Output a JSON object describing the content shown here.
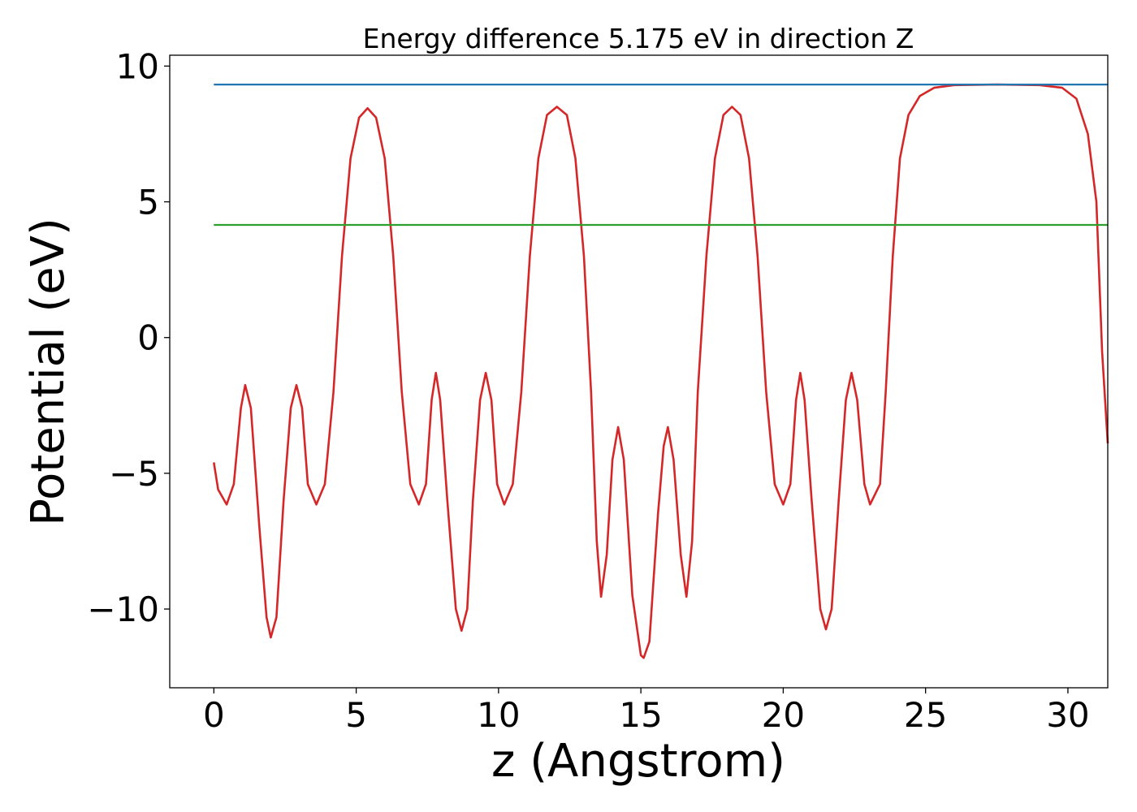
{
  "chart_data": {
    "type": "line",
    "title": "Energy difference 5.175 eV in direction Z",
    "xlabel": "z (Angstrom)",
    "ylabel": "Potential (eV)",
    "xlim": [
      -1.55,
      31.4
    ],
    "ylim": [
      -12.9,
      10.4
    ],
    "xticks": [
      0,
      5,
      10,
      15,
      20,
      25,
      30
    ],
    "xtick_labels": [
      "0",
      "5",
      "10",
      "15",
      "20",
      "25",
      "30"
    ],
    "yticks": [
      -10,
      -5,
      0,
      5,
      10
    ],
    "ytick_labels": [
      "−10",
      "−5",
      "0",
      "5",
      "10"
    ],
    "grid": false,
    "legend": "none",
    "series": [
      {
        "color": "#d62728",
        "kind": "potential",
        "points": [
          [
            0.0,
            -4.6
          ],
          [
            0.15,
            -5.6
          ],
          [
            0.45,
            -6.15
          ],
          [
            0.7,
            -5.4
          ],
          [
            0.95,
            -2.6
          ],
          [
            1.1,
            -1.75
          ],
          [
            1.3,
            -2.6
          ],
          [
            1.6,
            -7.0
          ],
          [
            1.85,
            -10.3
          ],
          [
            2.0,
            -11.05
          ],
          [
            2.2,
            -10.3
          ],
          [
            2.45,
            -6.0
          ],
          [
            2.7,
            -2.6
          ],
          [
            2.9,
            -1.75
          ],
          [
            3.1,
            -2.6
          ],
          [
            3.3,
            -5.4
          ],
          [
            3.6,
            -6.15
          ],
          [
            3.9,
            -5.4
          ],
          [
            4.2,
            -2.0
          ],
          [
            4.5,
            3.0
          ],
          [
            4.8,
            6.6
          ],
          [
            5.1,
            8.1
          ],
          [
            5.4,
            8.45
          ],
          [
            5.7,
            8.1
          ],
          [
            6.0,
            6.6
          ],
          [
            6.3,
            3.0
          ],
          [
            6.6,
            -2.0
          ],
          [
            6.9,
            -5.4
          ],
          [
            7.2,
            -6.15
          ],
          [
            7.45,
            -5.4
          ],
          [
            7.65,
            -2.3
          ],
          [
            7.8,
            -1.3
          ],
          [
            7.95,
            -2.3
          ],
          [
            8.2,
            -6.0
          ],
          [
            8.5,
            -10.0
          ],
          [
            8.7,
            -10.8
          ],
          [
            8.9,
            -10.0
          ],
          [
            9.1,
            -6.0
          ],
          [
            9.35,
            -2.3
          ],
          [
            9.55,
            -1.3
          ],
          [
            9.75,
            -2.3
          ],
          [
            9.95,
            -5.4
          ],
          [
            10.2,
            -6.15
          ],
          [
            10.5,
            -5.4
          ],
          [
            10.8,
            -2.0
          ],
          [
            11.1,
            3.0
          ],
          [
            11.4,
            6.6
          ],
          [
            11.7,
            8.2
          ],
          [
            12.05,
            8.5
          ],
          [
            12.4,
            8.2
          ],
          [
            12.7,
            6.6
          ],
          [
            13.0,
            3.0
          ],
          [
            13.25,
            -2.0
          ],
          [
            13.45,
            -7.5
          ],
          [
            13.6,
            -9.55
          ],
          [
            13.8,
            -8.0
          ],
          [
            14.0,
            -4.5
          ],
          [
            14.2,
            -3.3
          ],
          [
            14.4,
            -4.5
          ],
          [
            14.7,
            -9.5
          ],
          [
            15.0,
            -11.7
          ],
          [
            15.1,
            -11.8
          ],
          [
            15.3,
            -11.2
          ],
          [
            15.6,
            -6.5
          ],
          [
            15.8,
            -4.0
          ],
          [
            15.95,
            -3.3
          ],
          [
            16.15,
            -4.5
          ],
          [
            16.4,
            -8.0
          ],
          [
            16.6,
            -9.55
          ],
          [
            16.8,
            -7.5
          ],
          [
            17.0,
            -2.0
          ],
          [
            17.3,
            3.0
          ],
          [
            17.6,
            6.6
          ],
          [
            17.9,
            8.2
          ],
          [
            18.2,
            8.5
          ],
          [
            18.5,
            8.2
          ],
          [
            18.8,
            6.6
          ],
          [
            19.1,
            3.0
          ],
          [
            19.4,
            -2.0
          ],
          [
            19.7,
            -5.4
          ],
          [
            20.0,
            -6.15
          ],
          [
            20.25,
            -5.4
          ],
          [
            20.45,
            -2.3
          ],
          [
            20.6,
            -1.3
          ],
          [
            20.75,
            -2.3
          ],
          [
            21.0,
            -6.0
          ],
          [
            21.3,
            -10.0
          ],
          [
            21.5,
            -10.75
          ],
          [
            21.7,
            -10.0
          ],
          [
            21.95,
            -6.0
          ],
          [
            22.2,
            -2.3
          ],
          [
            22.4,
            -1.3
          ],
          [
            22.6,
            -2.3
          ],
          [
            22.85,
            -5.4
          ],
          [
            23.05,
            -6.15
          ],
          [
            23.4,
            -5.4
          ],
          [
            23.6,
            -2.0
          ],
          [
            23.85,
            3.0
          ],
          [
            24.1,
            6.6
          ],
          [
            24.4,
            8.2
          ],
          [
            24.8,
            8.9
          ],
          [
            25.3,
            9.2
          ],
          [
            26.0,
            9.3
          ],
          [
            27.5,
            9.32
          ],
          [
            29.0,
            9.3
          ],
          [
            29.8,
            9.2
          ],
          [
            30.3,
            8.8
          ],
          [
            30.7,
            7.5
          ],
          [
            31.0,
            5.0
          ],
          [
            31.2,
            -0.5
          ],
          [
            31.4,
            -3.9
          ]
        ]
      },
      {
        "color": "#1f77b4",
        "kind": "hline",
        "points": [
          [
            0.0,
            9.32
          ],
          [
            31.4,
            9.32
          ]
        ]
      },
      {
        "color": "#2ca02c",
        "kind": "hline",
        "points": [
          [
            0.0,
            4.15
          ],
          [
            31.4,
            4.15
          ]
        ]
      }
    ]
  }
}
